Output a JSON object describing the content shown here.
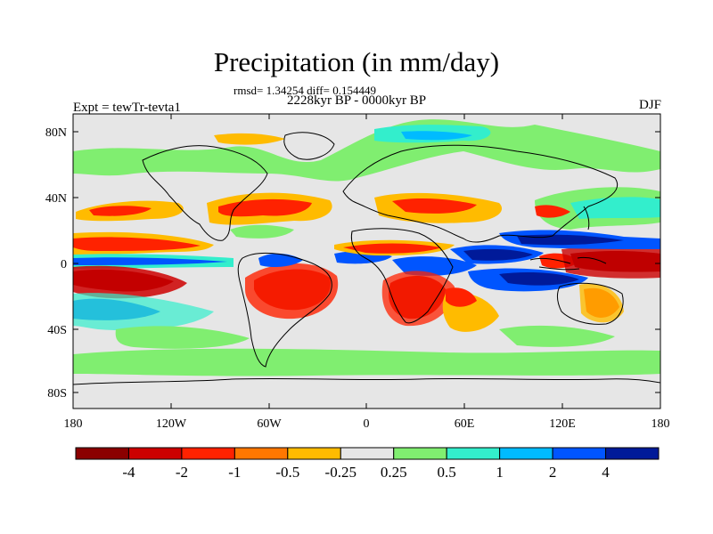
{
  "title": "Precipitation (in mm/day)",
  "stats": "rmsd= 1.34254 diff= 0.154449",
  "period": "2228kyr BP - 0000kyr BP",
  "left_label": "Expt = tewTr-tevta1",
  "right_label": "DJF",
  "lat_labels": [
    "80N",
    "40N",
    "0",
    "40S",
    "80S"
  ],
  "lon_labels": [
    "180",
    "120W",
    "60W",
    "0",
    "60E",
    "120E",
    "180"
  ],
  "colorbar": {
    "colors": [
      "#8b0000",
      "#cc0000",
      "#ff2200",
      "#ff7700",
      "#ffbb00",
      "#e6e6e6",
      "#80ee70",
      "#33eecc",
      "#00bbff",
      "#0055ff",
      "#001a99"
    ],
    "labels": [
      "-4",
      "-2",
      "-1",
      "-0.5",
      "-0.25",
      "0.25",
      "0.5",
      "1",
      "2",
      "4"
    ]
  }
}
